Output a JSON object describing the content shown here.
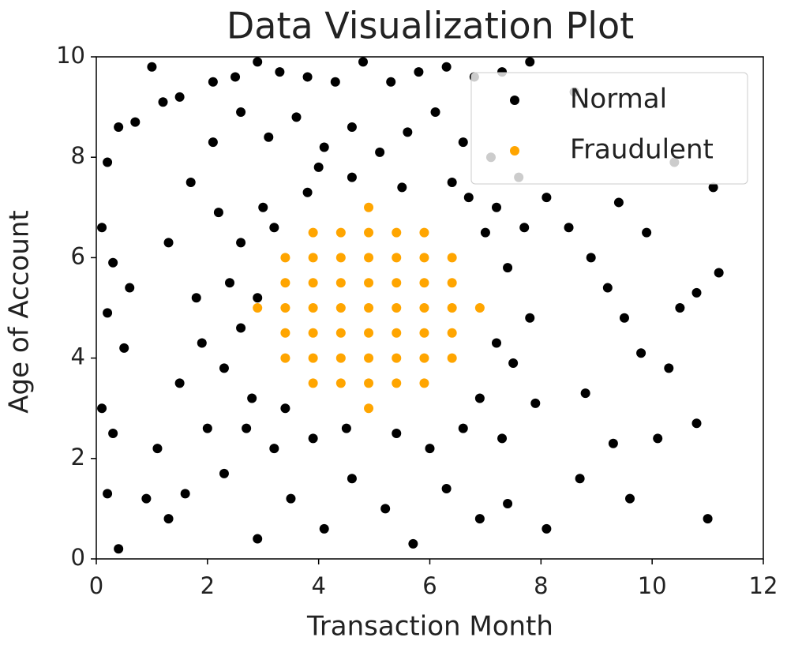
{
  "chart_data": {
    "type": "scatter",
    "title": "Data Visualization Plot",
    "x_label": "Transaction Month",
    "y_label": "Age of Account",
    "xlim": [
      0,
      12
    ],
    "ylim": [
      0,
      10
    ],
    "xticks": [
      0,
      2,
      4,
      6,
      8,
      10,
      12
    ],
    "yticks": [
      0,
      2,
      4,
      6,
      8,
      10
    ],
    "grid": false,
    "legend": "upper right",
    "series": [
      {
        "name": "Normal",
        "color": "#000000",
        "x": [
          0.2,
          0.4,
          0.7,
          1.0,
          1.2,
          1.5,
          2.1,
          2.5,
          2.9,
          3.3,
          3.8,
          4.3,
          4.8,
          5.3,
          5.8,
          6.3,
          6.8,
          7.3,
          7.8,
          8.6,
          0.1,
          0.3,
          0.6,
          0.2,
          0.5,
          0.1,
          0.3,
          0.2,
          0.4,
          0.9,
          1.3,
          1.6,
          1.1,
          1.5,
          1.8,
          1.3,
          1.7,
          2.1,
          2.6,
          3.1,
          3.6,
          4.1,
          4.6,
          5.1,
          5.6,
          6.1,
          6.6,
          7.1,
          7.6,
          8.1,
          8.5,
          8.9,
          9.2,
          9.5,
          9.8,
          10.3,
          10.1,
          10.8,
          11.0,
          11.2,
          10.8,
          10.5,
          9.9,
          10.4,
          11.1,
          9.4,
          8.8,
          9.3,
          8.7,
          9.6,
          8.1,
          7.4,
          6.9,
          6.3,
          5.7,
          5.2,
          4.6,
          4.1,
          3.5,
          2.9,
          2.3,
          2.7,
          3.2,
          3.9,
          4.5,
          5.4,
          6.0,
          6.6,
          7.3,
          7.9,
          7.5,
          7.8,
          7.4,
          7.7,
          7.2,
          6.4,
          5.5,
          4.6,
          3.8,
          3.0,
          2.6,
          2.4,
          2.6,
          2.3,
          2.8,
          3.4,
          2.0,
          1.9,
          2.2,
          6.9,
          7.0,
          3.2,
          2.9,
          7.2,
          6.7,
          4.0
        ],
        "values": [
          7.9,
          8.6,
          8.7,
          9.8,
          9.1,
          9.2,
          9.5,
          9.6,
          9.9,
          9.7,
          9.6,
          9.5,
          9.9,
          9.5,
          9.7,
          9.8,
          9.6,
          9.7,
          9.9,
          9.3,
          6.6,
          5.9,
          5.4,
          4.9,
          4.2,
          3.0,
          2.5,
          1.3,
          0.2,
          1.2,
          0.8,
          1.3,
          2.2,
          3.5,
          5.2,
          6.3,
          7.5,
          8.3,
          8.9,
          8.4,
          8.8,
          8.2,
          8.6,
          8.1,
          8.5,
          8.9,
          8.3,
          8.0,
          7.6,
          7.2,
          6.6,
          6.0,
          5.4,
          4.8,
          4.1,
          3.8,
          2.4,
          2.7,
          0.8,
          5.7,
          5.3,
          5.0,
          6.5,
          7.9,
          7.4,
          7.1,
          3.3,
          2.3,
          1.6,
          1.2,
          0.6,
          1.1,
          0.8,
          1.4,
          0.3,
          1.0,
          1.6,
          0.6,
          1.2,
          0.4,
          1.7,
          2.6,
          2.2,
          2.4,
          2.6,
          2.5,
          2.2,
          2.6,
          2.4,
          3.1,
          3.9,
          4.8,
          5.8,
          6.6,
          7.0,
          7.5,
          7.4,
          7.6,
          7.3,
          7.0,
          6.3,
          5.5,
          4.6,
          3.8,
          3.2,
          3.0,
          2.6,
          4.3,
          6.9,
          3.2,
          6.5,
          6.6,
          5.2,
          4.3,
          7.2,
          7.8
        ]
      },
      {
        "name": "Fraudulent",
        "color": "#ffa500",
        "x": [
          2.9,
          3.4,
          3.4,
          3.4,
          3.4,
          3.4,
          3.9,
          3.9,
          3.9,
          3.9,
          3.9,
          3.9,
          3.9,
          4.4,
          4.4,
          4.4,
          4.4,
          4.4,
          4.4,
          4.4,
          4.9,
          4.9,
          4.9,
          4.9,
          4.9,
          4.9,
          4.9,
          4.9,
          4.9,
          5.4,
          5.4,
          5.4,
          5.4,
          5.4,
          5.4,
          5.4,
          5.9,
          5.9,
          5.9,
          5.9,
          5.9,
          5.9,
          5.9,
          6.4,
          6.4,
          6.4,
          6.4,
          6.4,
          6.9
        ],
        "values": [
          5.0,
          4.0,
          4.5,
          5.0,
          5.5,
          6.0,
          3.5,
          4.0,
          4.5,
          5.0,
          5.5,
          6.0,
          6.5,
          3.5,
          4.0,
          4.5,
          5.0,
          5.5,
          6.0,
          6.5,
          3.0,
          3.5,
          4.0,
          4.5,
          5.0,
          5.5,
          6.0,
          6.5,
          7.0,
          3.5,
          4.0,
          4.5,
          5.0,
          5.5,
          6.0,
          6.5,
          3.5,
          4.0,
          4.5,
          5.0,
          5.5,
          6.0,
          6.5,
          4.0,
          4.5,
          5.0,
          5.5,
          6.0,
          5.0
        ]
      }
    ]
  }
}
